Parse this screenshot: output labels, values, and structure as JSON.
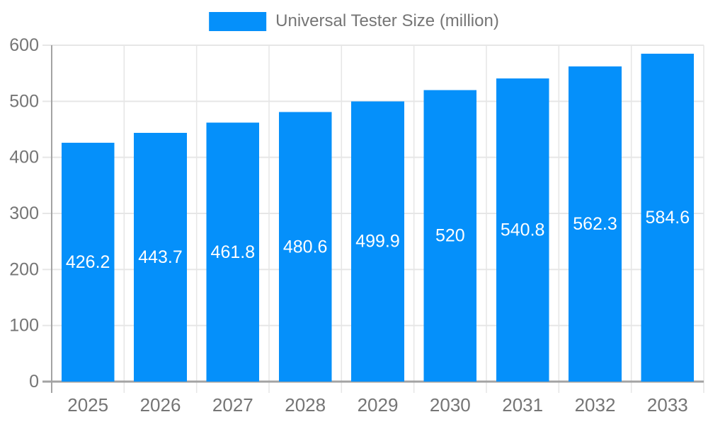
{
  "legend": {
    "label": "Universal Tester Size (million)",
    "swatch_icon": "legend-color-swatch"
  },
  "colors": {
    "bar": "#0590fa",
    "grid_line": "#e6e6e6",
    "axis_line": "#a3a3a3",
    "tick_text": "#757575",
    "value_label_text": "#ffffff",
    "background": "#ffffff"
  },
  "chart_data": {
    "type": "bar",
    "title": "",
    "xlabel": "",
    "ylabel": "",
    "legend_entries": [
      "Universal Tester Size (million)"
    ],
    "legend_position": "top",
    "grid": "on",
    "categories": [
      "2025",
      "2026",
      "2027",
      "2028",
      "2029",
      "2030",
      "2031",
      "2032",
      "2033"
    ],
    "series": [
      {
        "name": "Universal Tester Size (million)",
        "values": [
          426.2,
          443.7,
          461.8,
          480.6,
          499.9,
          520,
          540.8,
          562.3,
          584.6
        ],
        "labels": [
          "426.2",
          "443.7",
          "461.8",
          "480.6",
          "499.9",
          "520",
          "540.8",
          "562.3",
          "584.6"
        ]
      }
    ],
    "ylim": [
      0,
      600
    ],
    "y_ticks": [
      0,
      100,
      200,
      300,
      400,
      500,
      600
    ]
  }
}
